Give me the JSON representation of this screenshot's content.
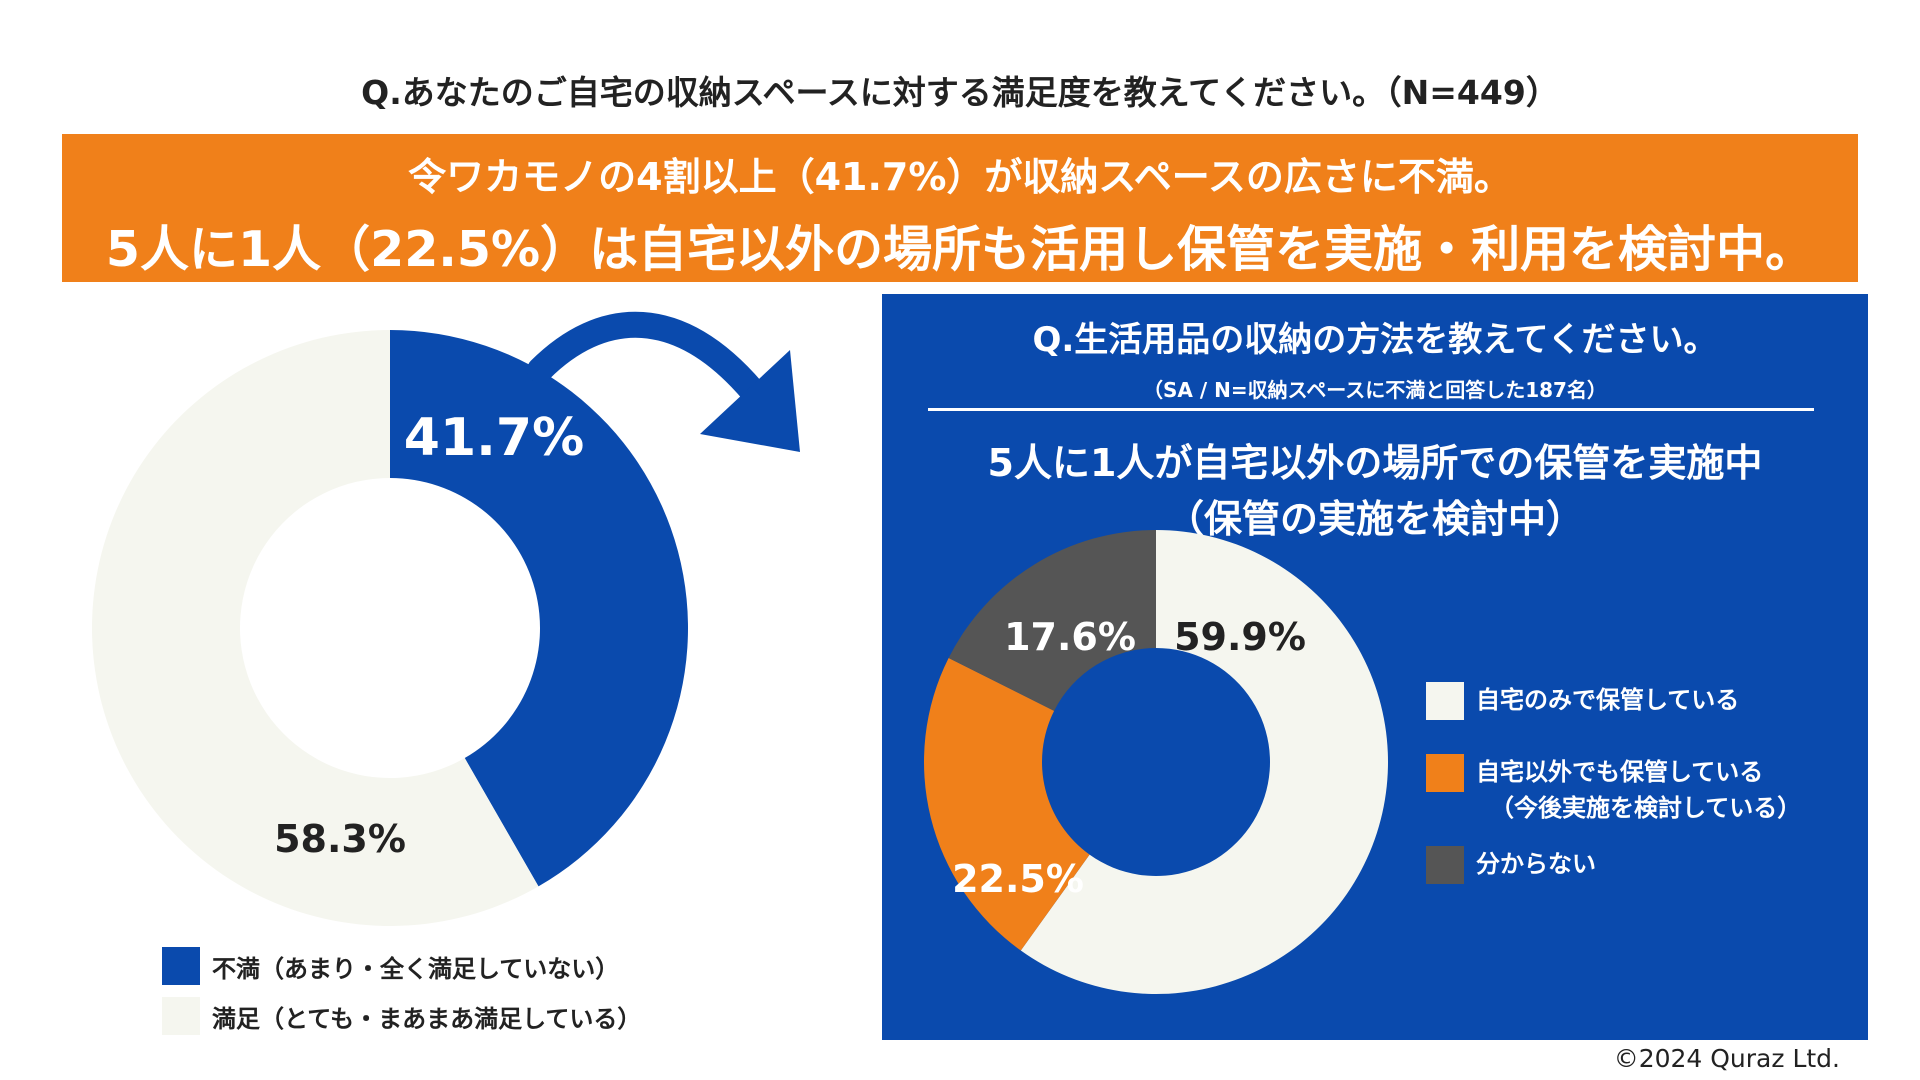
{
  "title": "Q.あなたのご自宅の収納スペースに対する満足度を教えてください。（N=449）",
  "banner": {
    "line1": "令ワカモノの4割以上（41.7%）が収納スペースの広さに不満。",
    "line2": "5人に1人（22.5%）は自宅以外の場所も活用し保管を実施・利用を検討中。"
  },
  "chart_data": [
    {
      "type": "pie",
      "title": "",
      "categories": [
        "不満（あまり・全く満足していない）",
        "満足（とても・まあまあ満足している）"
      ],
      "values": [
        41.7,
        58.3
      ],
      "value_labels": [
        "41.7%",
        "58.3%"
      ],
      "colors": [
        "#0a4aad",
        "#f5f6ef"
      ],
      "legend_position": "bottom-left"
    },
    {
      "type": "pie",
      "title": "Q.生活用品の収納の方法を教えてください。",
      "categories": [
        "自宅のみで保管している",
        "自宅以外でも保管している（今後実施を検討している）",
        "分からない"
      ],
      "values": [
        59.9,
        22.5,
        17.6
      ],
      "value_labels": [
        "59.9%",
        "22.5%",
        "17.6%"
      ],
      "colors": [
        "#f5f6ef",
        "#f0801a",
        "#555555"
      ],
      "legend_position": "right"
    }
  ],
  "panel": {
    "question": "Q.生活用品の収納の方法を教えてください。",
    "note": "（SA / N=収納スペースに不満と回答した187名）",
    "headline1": "5人に1人が自宅以外の場所での保管を実施中",
    "headline2": "（保管の実施を検討中）"
  },
  "left_legend": [
    {
      "label": "不満（あまり・全く満足していない）",
      "color": "#0a4aad"
    },
    {
      "label": "満足（とても・まあまあ満足している）",
      "color": "#f5f6ef"
    }
  ],
  "right_legend": [
    {
      "label": "自宅のみで保管している",
      "sub": "",
      "color": "#f5f6ef"
    },
    {
      "label": "自宅以外でも保管している",
      "sub": "（今後実施を検討している）",
      "color": "#f0801a"
    },
    {
      "label": "分からない",
      "sub": "",
      "color": "#555555"
    }
  ],
  "copyright": "©2024 Quraz Ltd."
}
